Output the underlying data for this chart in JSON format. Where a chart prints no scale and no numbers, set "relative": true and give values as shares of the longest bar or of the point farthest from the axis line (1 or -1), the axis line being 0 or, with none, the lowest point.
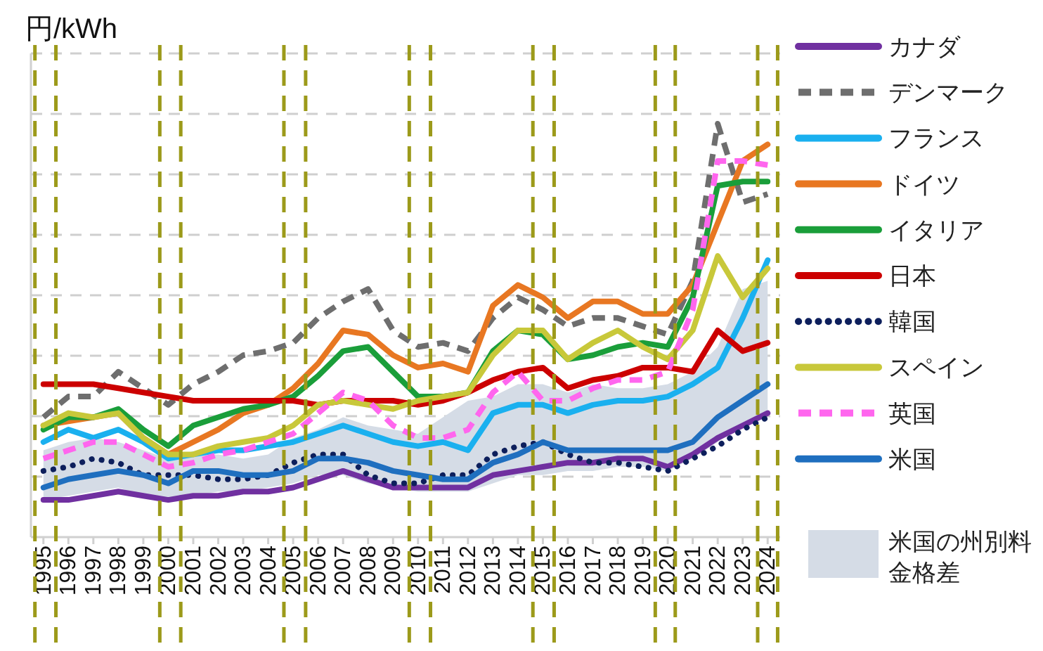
{
  "chart_data": {
    "type": "line",
    "relative": true,
    "ylabel": "円/kWh",
    "x": [
      1995,
      1996,
      1997,
      1998,
      1999,
      2000,
      2001,
      2002,
      2003,
      2004,
      2005,
      2006,
      2007,
      2008,
      2009,
      2010,
      2011,
      2012,
      2013,
      2014,
      2015,
      2016,
      2017,
      2018,
      2019,
      2020,
      2021,
      2022,
      2023,
      2024
    ],
    "xlim": [
      1994.5,
      2024.5
    ],
    "xticks": [
      1995,
      1996,
      1997,
      1998,
      1999,
      2000,
      2001,
      2002,
      2003,
      2004,
      2005,
      2006,
      2007,
      2008,
      2009,
      2010,
      2011,
      2012,
      2013,
      2014,
      2015,
      2016,
      2017,
      2018,
      2019,
      2020,
      2021,
      2022,
      2023,
      2024
    ],
    "ref_lines": [
      {
        "axis": "x",
        "value": 1994.66,
        "label": null,
        "color": "#9c9a1a",
        "line_style": "dashed"
      },
      {
        "axis": "x",
        "value": 1995.5,
        "label": null,
        "color": "#9c9a1a",
        "line_style": "dashed"
      },
      {
        "axis": "x",
        "value": 1999.66,
        "label": null,
        "color": "#9c9a1a",
        "line_style": "dashed"
      },
      {
        "axis": "x",
        "value": 2000.5,
        "label": null,
        "color": "#9c9a1a",
        "line_style": "dashed"
      },
      {
        "axis": "x",
        "value": 2004.63,
        "label": null,
        "color": "#9c9a1a",
        "line_style": "dashed"
      },
      {
        "axis": "x",
        "value": 2005.5,
        "label": null,
        "color": "#9c9a1a",
        "line_style": "dashed"
      },
      {
        "axis": "x",
        "value": 2009.65,
        "label": null,
        "color": "#9c9a1a",
        "line_style": "dashed"
      },
      {
        "axis": "x",
        "value": 2010.5,
        "label": null,
        "color": "#9c9a1a",
        "line_style": "dashed"
      },
      {
        "axis": "x",
        "value": 2014.6,
        "label": null,
        "color": "#9c9a1a",
        "line_style": "dashed"
      },
      {
        "axis": "x",
        "value": 2015.45,
        "label": null,
        "color": "#9c9a1a",
        "line_style": "dashed"
      },
      {
        "axis": "x",
        "value": 2019.5,
        "label": null,
        "color": "#9c9a1a",
        "line_style": "dashed"
      },
      {
        "axis": "x",
        "value": 2020.3,
        "label": null,
        "color": "#9c9a1a",
        "line_style": "dashed"
      },
      {
        "axis": "x",
        "value": 2023.6,
        "label": null,
        "color": "#9c9a1a",
        "line_style": "dashed"
      },
      {
        "axis": "x",
        "value": 2024.4,
        "label": null,
        "color": "#9c9a1a",
        "line_style": "dashed"
      }
    ],
    "grid": "y",
    "legend": "right",
    "series": [
      {
        "name": "カナダ",
        "color": "#7030a0",
        "values": [
          0.09,
          0.09,
          0.1,
          0.11,
          0.1,
          0.09,
          0.1,
          0.1,
          0.11,
          0.11,
          0.12,
          0.14,
          0.16,
          0.14,
          0.12,
          0.12,
          0.12,
          0.12,
          0.15,
          0.16,
          0.17,
          0.18,
          0.18,
          0.19,
          0.19,
          0.17,
          0.2,
          0.24,
          0.27,
          0.3
        ]
      },
      {
        "name": "デンマーク",
        "color": "#6e6e6e",
        "line_style": "dashed",
        "values": [
          0.29,
          0.34,
          0.34,
          0.4,
          0.36,
          0.32,
          0.37,
          0.4,
          0.44,
          0.45,
          0.47,
          0.53,
          0.57,
          0.6,
          0.5,
          0.46,
          0.47,
          0.45,
          0.53,
          0.58,
          0.55,
          0.51,
          0.53,
          0.53,
          0.51,
          0.49,
          0.62,
          1.0,
          0.81,
          0.83
        ]
      },
      {
        "name": "フランス",
        "color": "#1ab0ef",
        "values": [
          0.23,
          0.26,
          0.24,
          0.26,
          0.23,
          0.19,
          0.2,
          0.21,
          0.21,
          0.22,
          0.23,
          0.25,
          0.27,
          0.25,
          0.23,
          0.22,
          0.23,
          0.21,
          0.3,
          0.32,
          0.32,
          0.3,
          0.32,
          0.33,
          0.33,
          0.34,
          0.37,
          0.41,
          0.53,
          0.67
        ]
      },
      {
        "name": "ドイツ",
        "color": "#e87722",
        "values": [
          0.27,
          0.28,
          0.29,
          0.3,
          0.24,
          0.2,
          0.23,
          0.26,
          0.3,
          0.32,
          0.36,
          0.42,
          0.5,
          0.49,
          0.44,
          0.41,
          0.42,
          0.4,
          0.56,
          0.61,
          0.58,
          0.53,
          0.57,
          0.57,
          0.54,
          0.54,
          0.61,
          0.76,
          0.91,
          0.95
        ]
      },
      {
        "name": "イタリア",
        "color": "#1a9e3a",
        "values": [
          0.26,
          0.29,
          0.29,
          0.31,
          0.26,
          0.22,
          0.27,
          0.29,
          0.31,
          0.32,
          0.34,
          0.39,
          0.45,
          0.46,
          0.4,
          0.34,
          0.34,
          0.35,
          0.45,
          0.5,
          0.49,
          0.43,
          0.44,
          0.46,
          0.47,
          0.46,
          0.58,
          0.85,
          0.86,
          0.86
        ]
      },
      {
        "name": "日本",
        "color": "#cc0000",
        "values": [
          0.37,
          0.37,
          0.37,
          0.36,
          0.35,
          0.34,
          0.33,
          0.33,
          0.33,
          0.33,
          0.33,
          0.32,
          0.33,
          0.33,
          0.33,
          0.32,
          0.33,
          0.35,
          0.38,
          0.4,
          0.41,
          0.36,
          0.38,
          0.39,
          0.41,
          0.41,
          0.4,
          0.5,
          0.45,
          0.47
        ]
      },
      {
        "name": "韓国",
        "color": "#0d1f5c",
        "line_style": "dotted",
        "values": [
          0.16,
          0.17,
          0.19,
          0.18,
          0.15,
          0.15,
          0.15,
          0.14,
          0.14,
          0.15,
          0.18,
          0.2,
          0.2,
          0.15,
          0.13,
          0.13,
          0.15,
          0.15,
          0.2,
          0.22,
          0.23,
          0.2,
          0.18,
          0.18,
          0.17,
          0.16,
          0.19,
          0.22,
          0.26,
          0.29
        ]
      },
      {
        "name": "スペイン",
        "color": "#c8c83a",
        "values": [
          0.27,
          0.3,
          0.29,
          0.3,
          0.24,
          0.2,
          0.2,
          0.22,
          0.23,
          0.24,
          0.27,
          0.32,
          0.33,
          0.32,
          0.31,
          0.33,
          0.34,
          0.35,
          0.44,
          0.5,
          0.5,
          0.43,
          0.47,
          0.5,
          0.46,
          0.43,
          0.5,
          0.68,
          0.58,
          0.65
        ]
      },
      {
        "name": "英国",
        "color": "#ff66ee",
        "line_style": "dashed",
        "values": [
          0.19,
          0.21,
          0.23,
          0.23,
          0.2,
          0.17,
          0.18,
          0.2,
          0.21,
          0.23,
          0.25,
          0.3,
          0.35,
          0.33,
          0.27,
          0.24,
          0.24,
          0.26,
          0.35,
          0.4,
          0.33,
          0.33,
          0.36,
          0.38,
          0.38,
          0.4,
          0.55,
          0.91,
          0.91,
          0.9
        ]
      },
      {
        "name": "米国",
        "color": "#1f6fbf",
        "values": [
          0.12,
          0.14,
          0.15,
          0.16,
          0.15,
          0.13,
          0.16,
          0.16,
          0.15,
          0.15,
          0.16,
          0.19,
          0.19,
          0.18,
          0.16,
          0.15,
          0.14,
          0.14,
          0.18,
          0.2,
          0.23,
          0.21,
          0.21,
          0.21,
          0.21,
          0.21,
          0.23,
          0.29,
          0.33,
          0.37
        ]
      },
      {
        "name": "米国の州別料金格差",
        "type": "area",
        "color": "#d5dce6",
        "values": [
          null,
          null,
          null,
          null,
          null,
          null,
          null,
          null,
          null,
          null,
          null,
          null,
          null,
          null,
          null,
          null,
          null,
          null,
          null,
          null,
          null,
          null,
          null,
          null,
          null,
          null,
          null,
          null,
          null,
          null
        ],
        "upper": [
          0.21,
          0.23,
          0.24,
          0.23,
          0.21,
          0.19,
          0.2,
          0.2,
          0.19,
          0.2,
          0.24,
          0.26,
          0.29,
          0.27,
          0.26,
          0.25,
          0.29,
          0.33,
          0.34,
          0.37,
          0.37,
          0.35,
          0.37,
          0.36,
          0.36,
          0.37,
          0.4,
          0.46,
          0.6,
          0.62
        ],
        "lower": [
          0.09,
          0.1,
          0.11,
          0.12,
          0.1,
          0.09,
          0.1,
          0.11,
          0.11,
          0.12,
          0.13,
          0.15,
          0.15,
          0.13,
          0.12,
          0.11,
          0.11,
          0.11,
          0.13,
          0.15,
          0.15,
          0.16,
          0.16,
          0.17,
          0.17,
          0.16,
          0.19,
          0.23,
          0.27,
          0.3
        ]
      }
    ]
  }
}
